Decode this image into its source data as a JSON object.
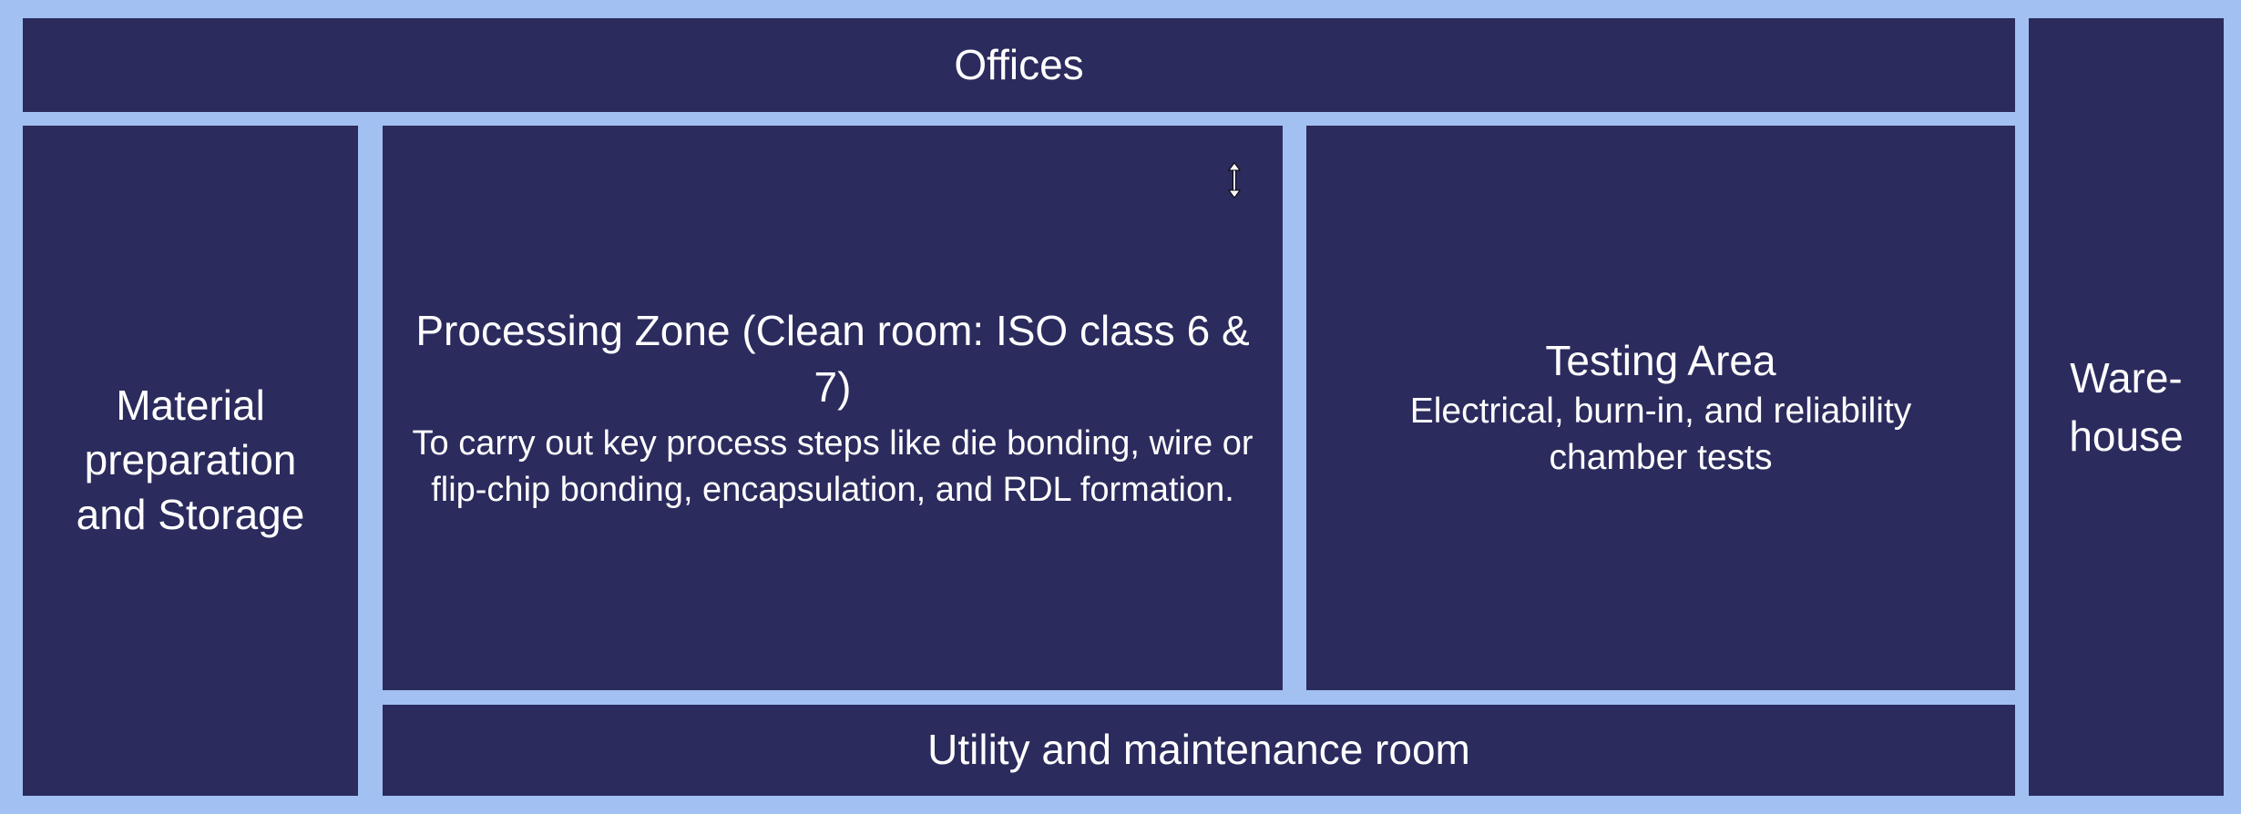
{
  "zones": {
    "offices": {
      "title": "Offices"
    },
    "material": {
      "title": "Material preparation and Storage"
    },
    "processing": {
      "title": "Processing Zone (Clean room: ISO class 6 & 7)",
      "desc": "To carry out key process steps like die bonding, wire or flip-chip bonding, encapsulation, and RDL formation."
    },
    "testing": {
      "title": "Testing Area",
      "desc": "Electrical, burn-in, and reliability chamber tests"
    },
    "utility": {
      "title": "Utility and maintenance room"
    },
    "warehouse": {
      "title": "Ware-house"
    }
  },
  "cursor": {
    "icon": "resize-vertical-icon"
  },
  "colors": {
    "background": "#a3c0f2",
    "zone_fill": "#2b2b5e",
    "text": "#ffffff"
  }
}
